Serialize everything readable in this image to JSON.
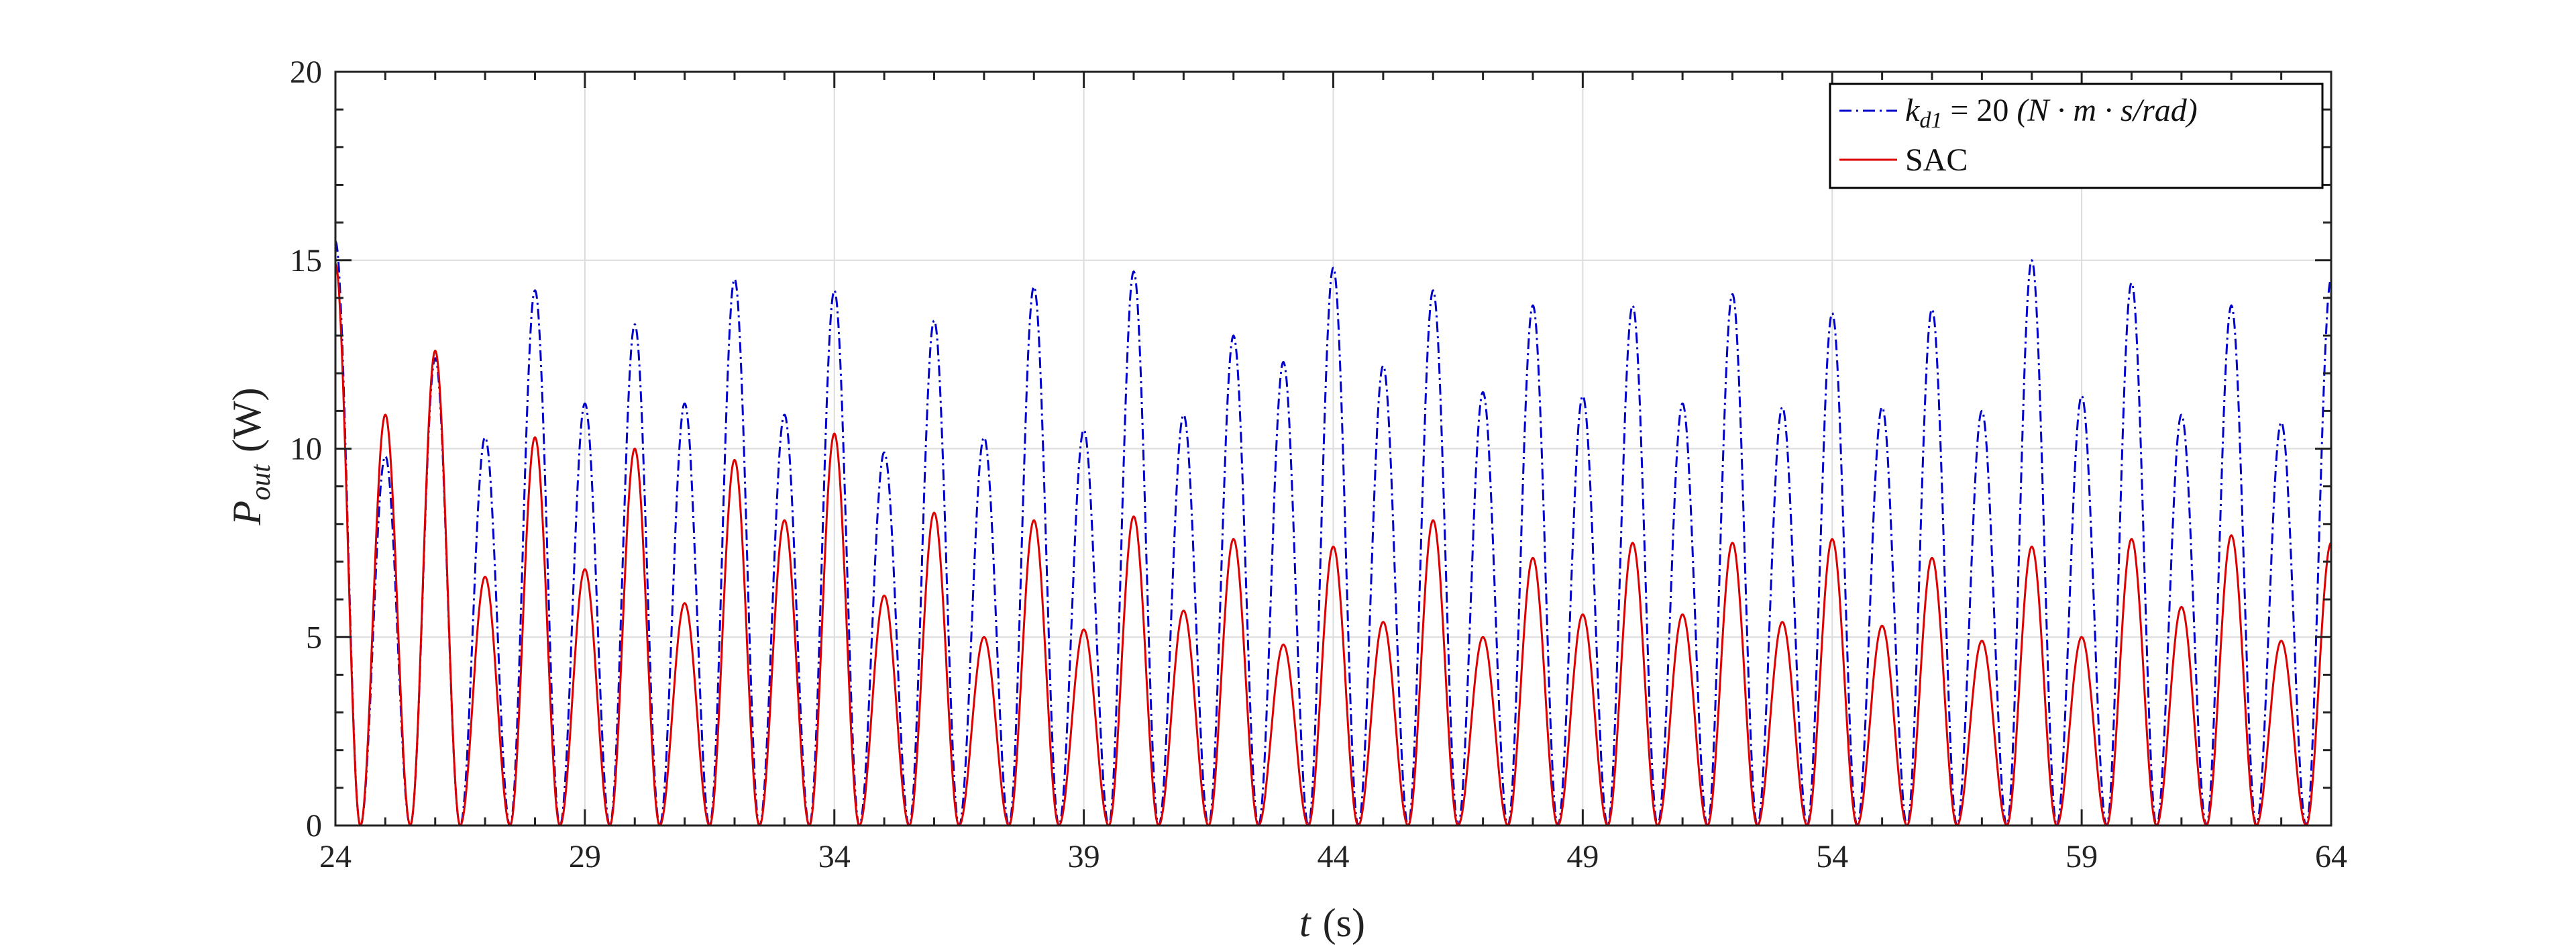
{
  "chart_data": {
    "type": "line",
    "xlabel": "t (s)",
    "ylabel": "P_out (W)",
    "xlim": [
      24,
      64
    ],
    "ylim": [
      0,
      20
    ],
    "xticks": [
      24,
      29,
      34,
      39,
      44,
      49,
      54,
      59,
      64
    ],
    "yticks": [
      0,
      5,
      10,
      15,
      20
    ],
    "grid": true,
    "legend_position": "top-right",
    "series": [
      {
        "name": "k_d1 = 20 (N·m·s/rad)",
        "style": "dash-dot",
        "color": "#0000cc",
        "peaks": [
          [
            24.0,
            15.5
          ],
          [
            25.0,
            9.8
          ],
          [
            26.0,
            12.4
          ],
          [
            27.0,
            10.3
          ],
          [
            28.0,
            14.2
          ],
          [
            29.0,
            11.2
          ],
          [
            30.0,
            13.3
          ],
          [
            31.0,
            11.2
          ],
          [
            32.0,
            14.5
          ],
          [
            33.0,
            10.9
          ],
          [
            34.0,
            14.2
          ],
          [
            35.0,
            9.9
          ],
          [
            36.0,
            13.4
          ],
          [
            37.0,
            10.3
          ],
          [
            38.0,
            14.3
          ],
          [
            39.0,
            10.5
          ],
          [
            40.0,
            14.7
          ],
          [
            41.0,
            10.9
          ],
          [
            42.0,
            13.0
          ],
          [
            43.0,
            12.3
          ],
          [
            44.0,
            14.8
          ],
          [
            45.0,
            12.2
          ],
          [
            46.0,
            14.2
          ],
          [
            47.0,
            11.5
          ],
          [
            48.0,
            13.8
          ],
          [
            49.0,
            11.4
          ],
          [
            50.0,
            13.8
          ],
          [
            51.0,
            11.2
          ],
          [
            52.0,
            14.1
          ],
          [
            53.0,
            11.1
          ],
          [
            54.0,
            13.6
          ],
          [
            55.0,
            11.1
          ],
          [
            56.0,
            13.7
          ],
          [
            57.0,
            11.0
          ],
          [
            58.0,
            15.0
          ],
          [
            59.0,
            11.4
          ],
          [
            60.0,
            14.4
          ],
          [
            61.0,
            10.9
          ],
          [
            62.0,
            13.8
          ],
          [
            63.0,
            10.7
          ],
          [
            64.0,
            14.5
          ]
        ]
      },
      {
        "name": "SAC",
        "style": "solid",
        "color": "#dd0000",
        "peaks": [
          [
            24.0,
            14.9
          ],
          [
            25.0,
            10.9
          ],
          [
            26.0,
            12.6
          ],
          [
            27.0,
            6.6
          ],
          [
            28.0,
            10.3
          ],
          [
            29.0,
            6.8
          ],
          [
            30.0,
            10.0
          ],
          [
            31.0,
            5.9
          ],
          [
            32.0,
            9.7
          ],
          [
            33.0,
            8.1
          ],
          [
            34.0,
            10.4
          ],
          [
            35.0,
            6.1
          ],
          [
            36.0,
            8.3
          ],
          [
            37.0,
            5.0
          ],
          [
            38.0,
            8.1
          ],
          [
            39.0,
            5.2
          ],
          [
            40.0,
            8.2
          ],
          [
            41.0,
            5.7
          ],
          [
            42.0,
            7.6
          ],
          [
            43.0,
            4.8
          ],
          [
            44.0,
            7.4
          ],
          [
            45.0,
            5.4
          ],
          [
            46.0,
            8.1
          ],
          [
            47.0,
            5.0
          ],
          [
            48.0,
            7.1
          ],
          [
            49.0,
            5.6
          ],
          [
            50.0,
            7.5
          ],
          [
            51.0,
            5.6
          ],
          [
            52.0,
            7.5
          ],
          [
            53.0,
            5.4
          ],
          [
            54.0,
            7.6
          ],
          [
            55.0,
            5.3
          ],
          [
            56.0,
            7.1
          ],
          [
            57.0,
            4.9
          ],
          [
            58.0,
            7.4
          ],
          [
            59.0,
            5.0
          ],
          [
            60.0,
            7.6
          ],
          [
            61.0,
            5.8
          ],
          [
            62.0,
            7.7
          ],
          [
            63.0,
            4.9
          ],
          [
            64.0,
            7.5
          ]
        ]
      }
    ]
  },
  "legend": {
    "entry1": {
      "var": "k",
      "sub": "d1",
      "eq": " = 20 ",
      "units": "(N · m · s/rad)"
    },
    "entry2": "SAC"
  },
  "axes": {
    "xlabel_var": "t",
    "xlabel_unit": "(s)",
    "ylabel_var": "P",
    "ylabel_sub": "out",
    "ylabel_unit": "(W)"
  }
}
